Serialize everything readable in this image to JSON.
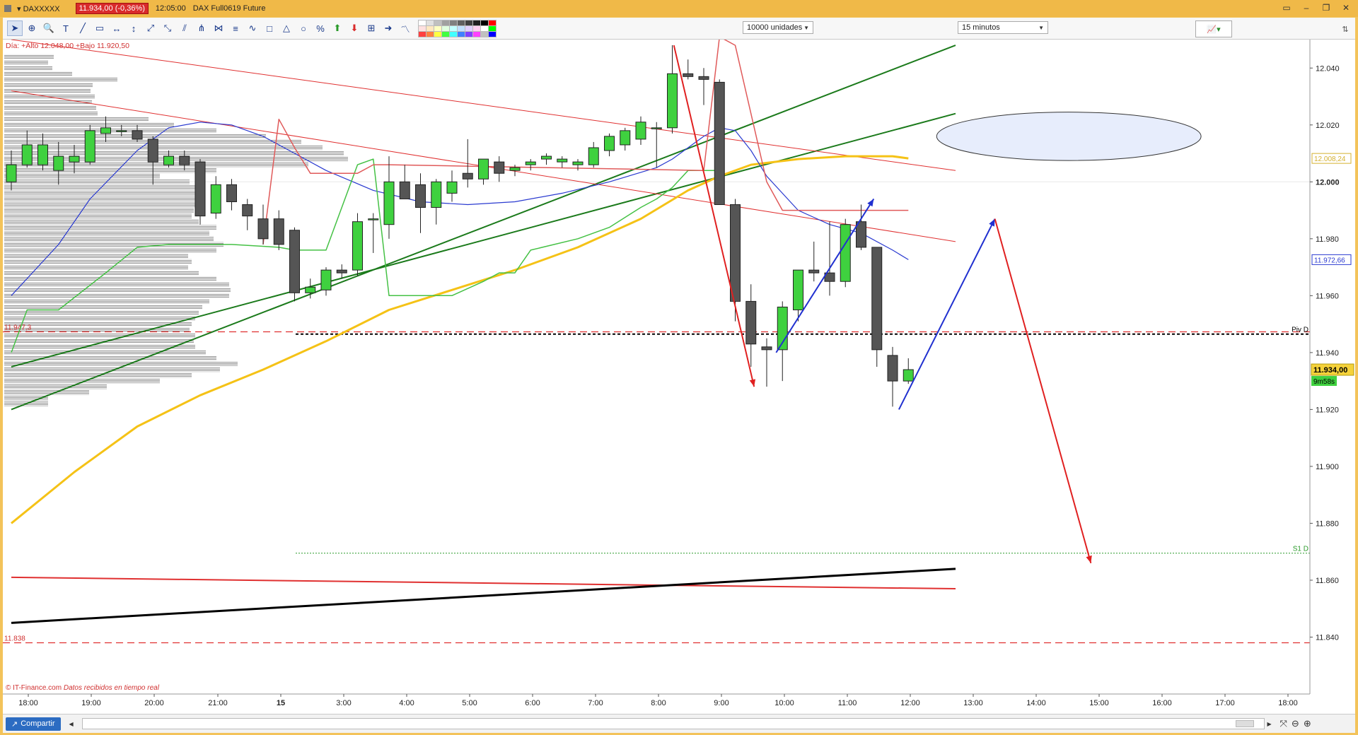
{
  "window": {
    "symbol": "DAXXXXX",
    "price_chip": "11.934,00 (-0,36%)",
    "time": "12:05:00",
    "description": "DAX Full0619 Future"
  },
  "toolbar": {
    "units_label": "10000 unidades",
    "timeframe_label": "15 minutos",
    "colors": [
      "#ffffff",
      "#e0e0e0",
      "#c0c0c0",
      "#a0a0a0",
      "#808080",
      "#606060",
      "#404040",
      "#202020",
      "#000000",
      "#ff0000",
      "#ffe0e0",
      "#ffe8c0",
      "#ffffc0",
      "#e0ffe0",
      "#c0ffff",
      "#c0e0ff",
      "#e0d0ff",
      "#ffd0f0",
      "#ffffff",
      "#00ff00",
      "#ff4040",
      "#ff8040",
      "#ffff40",
      "#40ff40",
      "#40ffff",
      "#4080ff",
      "#8040ff",
      "#ff40ff",
      "#c0c0c0",
      "#0000ff"
    ]
  },
  "chart_data": {
    "type": "candlestick",
    "header_text": "Día: +Alto 12.048,00 +Bajo 11.920,50",
    "attribution": "© IT-Finance.com",
    "attribution_note": "Datos recibidos en tiempo real",
    "y_range": [
      11820,
      12050
    ],
    "y_ticks": [
      "12.040",
      "12.020",
      "12.000",
      "11.980",
      "11.960",
      "11.940",
      "11.920",
      "11.900",
      "11.880",
      "11.860",
      "11.840"
    ],
    "current_price": "11.934,00",
    "countdown": "9m58s",
    "right_labels": [
      {
        "text": "12.008,24",
        "value": 12008.24,
        "color": "#d4b030"
      },
      {
        "text": "11.972,66",
        "value": 11972.66,
        "color": "#2a3ad0"
      }
    ],
    "levels": [
      {
        "name": "Piv D",
        "value": 11946.5,
        "color": "#000000"
      },
      {
        "name": "S1 D",
        "value": 11869.5,
        "color": "#2a9a2a"
      }
    ],
    "left_levels": [
      {
        "text": "11.947,3",
        "value": 11947.3
      },
      {
        "text": "11.838",
        "value": 11838
      }
    ],
    "x_labels": [
      "18:00",
      "19:00",
      "20:00",
      "21:00",
      "15",
      "3:00",
      "4:00",
      "5:00",
      "6:00",
      "7:00",
      "8:00",
      "9:00",
      "10:00",
      "11:00",
      "12:00",
      "13:00",
      "14:00",
      "15:00",
      "16:00",
      "17:00",
      "18:00"
    ],
    "x_label_bold": "15",
    "candles": [
      {
        "o": 12000,
        "h": 12011,
        "l": 11997,
        "c": 12006
      },
      {
        "o": 12006,
        "h": 12018,
        "l": 12005,
        "c": 12013
      },
      {
        "o": 12006,
        "h": 12017,
        "l": 12004,
        "c": 12013
      },
      {
        "o": 12004,
        "h": 12014,
        "l": 11999,
        "c": 12009
      },
      {
        "o": 12007,
        "h": 12013,
        "l": 12003,
        "c": 12009
      },
      {
        "o": 12007,
        "h": 12020,
        "l": 12006,
        "c": 12018
      },
      {
        "o": 12017,
        "h": 12023,
        "l": 12014,
        "c": 12019
      },
      {
        "o": 12018,
        "h": 12020,
        "l": 12016,
        "c": 12018
      },
      {
        "o": 12018,
        "h": 12020,
        "l": 12014,
        "c": 12015
      },
      {
        "o": 12015,
        "h": 12016,
        "l": 11999,
        "c": 12007
      },
      {
        "o": 12006,
        "h": 12011,
        "l": 12005,
        "c": 12009
      },
      {
        "o": 12009,
        "h": 12011,
        "l": 12004,
        "c": 12006
      },
      {
        "o": 12007,
        "h": 12008,
        "l": 11985,
        "c": 11988
      },
      {
        "o": 11989,
        "h": 12002,
        "l": 11987,
        "c": 11999
      },
      {
        "o": 11999,
        "h": 12001,
        "l": 11990,
        "c": 11993
      },
      {
        "o": 11992,
        "h": 11994,
        "l": 11983,
        "c": 11988
      },
      {
        "o": 11987,
        "h": 11992,
        "l": 11978,
        "c": 11980
      },
      {
        "o": 11987,
        "h": 11990,
        "l": 11976,
        "c": 11978
      },
      {
        "o": 11983,
        "h": 11984,
        "l": 11958,
        "c": 11961
      },
      {
        "o": 11961,
        "h": 11966,
        "l": 11959,
        "c": 11963
      },
      {
        "o": 11962,
        "h": 11970,
        "l": 11960,
        "c": 11969
      },
      {
        "o": 11969,
        "h": 11971,
        "l": 11966,
        "c": 11968
      },
      {
        "o": 11969,
        "h": 11989,
        "l": 11967,
        "c": 11986
      },
      {
        "o": 11987,
        "h": 11989,
        "l": 11975,
        "c": 11987
      },
      {
        "o": 11985,
        "h": 12009,
        "l": 11980,
        "c": 12000
      },
      {
        "o": 12000,
        "h": 12006,
        "l": 11995,
        "c": 11994
      },
      {
        "o": 11999,
        "h": 12003,
        "l": 11982,
        "c": 11991
      },
      {
        "o": 11991,
        "h": 12001,
        "l": 11985,
        "c": 12000
      },
      {
        "o": 11996,
        "h": 12004,
        "l": 11993,
        "c": 12000
      },
      {
        "o": 12003,
        "h": 12015,
        "l": 11998,
        "c": 12001
      },
      {
        "o": 12001,
        "h": 12007,
        "l": 11999,
        "c": 12008
      },
      {
        "o": 12007,
        "h": 12009,
        "l": 12000,
        "c": 12003
      },
      {
        "o": 12004,
        "h": 12006,
        "l": 12002,
        "c": 12005
      },
      {
        "o": 12006,
        "h": 12008,
        "l": 12004,
        "c": 12007
      },
      {
        "o": 12008,
        "h": 12010,
        "l": 12006,
        "c": 12009
      },
      {
        "o": 12007,
        "h": 12009,
        "l": 12005,
        "c": 12008
      },
      {
        "o": 12006,
        "h": 12008,
        "l": 12004,
        "c": 12007
      },
      {
        "o": 12006,
        "h": 12014,
        "l": 12005,
        "c": 12012
      },
      {
        "o": 12011,
        "h": 12017,
        "l": 12009,
        "c": 12016
      },
      {
        "o": 12013,
        "h": 12019,
        "l": 12011,
        "c": 12018
      },
      {
        "o": 12015,
        "h": 12023,
        "l": 12013,
        "c": 12021
      },
      {
        "o": 12019,
        "h": 12021,
        "l": 12005,
        "c": 12019
      },
      {
        "o": 12019,
        "h": 12048,
        "l": 12017,
        "c": 12038
      },
      {
        "o": 12038,
        "h": 12043,
        "l": 12036,
        "c": 12037
      },
      {
        "o": 12037,
        "h": 12040,
        "l": 12027,
        "c": 12036
      },
      {
        "o": 12035,
        "h": 12036,
        "l": 11992,
        "c": 11992
      },
      {
        "o": 11992,
        "h": 11994,
        "l": 11951,
        "c": 11958
      },
      {
        "o": 11958,
        "h": 11964,
        "l": 11935,
        "c": 11943
      },
      {
        "o": 11942,
        "h": 11945,
        "l": 11928,
        "c": 11941
      },
      {
        "o": 11941,
        "h": 11958,
        "l": 11930,
        "c": 11956
      },
      {
        "o": 11955,
        "h": 11969,
        "l": 11951,
        "c": 11969
      },
      {
        "o": 11969,
        "h": 11979,
        "l": 11965,
        "c": 11968
      },
      {
        "o": 11968,
        "h": 11986,
        "l": 11960,
        "c": 11965
      },
      {
        "o": 11965,
        "h": 11987,
        "l": 11963,
        "c": 11985
      },
      {
        "o": 11986,
        "h": 11992,
        "l": 11976,
        "c": 11977
      },
      {
        "o": 11977,
        "h": 11977,
        "l": 11935,
        "c": 11941
      },
      {
        "o": 11939,
        "h": 11942,
        "l": 11921,
        "c": 11930
      },
      {
        "o": 11930,
        "h": 11938,
        "l": 11929,
        "c": 11934
      }
    ],
    "volume_profile": [
      {
        "price": 12044,
        "len": 70
      },
      {
        "price": 12042,
        "len": 62
      },
      {
        "price": 12040,
        "len": 68
      },
      {
        "price": 12038,
        "len": 96
      },
      {
        "price": 12036,
        "len": 160
      },
      {
        "price": 12034,
        "len": 125
      },
      {
        "price": 12032,
        "len": 122
      },
      {
        "price": 12030,
        "len": 128
      },
      {
        "price": 12028,
        "len": 124
      },
      {
        "price": 12026,
        "len": 130
      },
      {
        "price": 12024,
        "len": 132
      },
      {
        "price": 12022,
        "len": 204
      },
      {
        "price": 12020,
        "len": 240
      },
      {
        "price": 12018,
        "len": 300
      },
      {
        "price": 12016,
        "len": 370
      },
      {
        "price": 12014,
        "len": 420
      },
      {
        "price": 12012,
        "len": 450
      },
      {
        "price": 12010,
        "len": 480
      },
      {
        "price": 12008,
        "len": 486
      },
      {
        "price": 12006,
        "len": 430
      },
      {
        "price": 12004,
        "len": 300
      },
      {
        "price": 12002,
        "len": 220
      },
      {
        "price": 12000,
        "len": 262
      },
      {
        "price": 11998,
        "len": 270
      },
      {
        "price": 11996,
        "len": 275
      },
      {
        "price": 11994,
        "len": 280
      },
      {
        "price": 11992,
        "len": 270
      },
      {
        "price": 11990,
        "len": 268
      },
      {
        "price": 11988,
        "len": 265
      },
      {
        "price": 11986,
        "len": 275
      },
      {
        "price": 11984,
        "len": 300
      },
      {
        "price": 11982,
        "len": 290
      },
      {
        "price": 11980,
        "len": 296
      },
      {
        "price": 11978,
        "len": 310
      },
      {
        "price": 11976,
        "len": 300
      },
      {
        "price": 11974,
        "len": 260
      },
      {
        "price": 11972,
        "len": 265
      },
      {
        "price": 11970,
        "len": 260
      },
      {
        "price": 11968,
        "len": 275
      },
      {
        "price": 11966,
        "len": 300
      },
      {
        "price": 11964,
        "len": 318
      },
      {
        "price": 11962,
        "len": 320
      },
      {
        "price": 11960,
        "len": 318
      },
      {
        "price": 11958,
        "len": 290
      },
      {
        "price": 11956,
        "len": 280
      },
      {
        "price": 11954,
        "len": 275
      },
      {
        "price": 11952,
        "len": 270
      },
      {
        "price": 11950,
        "len": 265
      },
      {
        "price": 11948,
        "len": 262
      },
      {
        "price": 11946,
        "len": 270
      },
      {
        "price": 11944,
        "len": 268
      },
      {
        "price": 11942,
        "len": 270
      },
      {
        "price": 11940,
        "len": 285
      },
      {
        "price": 11938,
        "len": 300
      },
      {
        "price": 11936,
        "len": 330
      },
      {
        "price": 11934,
        "len": 305
      },
      {
        "price": 11932,
        "len": 265
      },
      {
        "price": 11930,
        "len": 220
      },
      {
        "price": 11928,
        "len": 145
      },
      {
        "price": 11926,
        "len": 120
      },
      {
        "price": 11924,
        "len": 62
      },
      {
        "price": 11922,
        "len": 62
      }
    ],
    "sma_blue": [
      [
        0,
        11960
      ],
      [
        3,
        11978
      ],
      [
        5,
        11994
      ],
      [
        8,
        12011
      ],
      [
        10,
        12019
      ],
      [
        12,
        12021
      ],
      [
        14,
        12020
      ],
      [
        16,
        12016
      ],
      [
        18,
        12010
      ],
      [
        20,
        12004
      ],
      [
        23,
        11997
      ],
      [
        26,
        11993
      ],
      [
        29,
        11992
      ],
      [
        32,
        11993
      ],
      [
        35,
        11996
      ],
      [
        38,
        12000
      ],
      [
        41,
        12005
      ],
      [
        42,
        12008
      ],
      [
        43,
        12012
      ],
      [
        44,
        12016
      ],
      [
        45,
        12019
      ],
      [
        46,
        12018
      ],
      [
        47,
        12011
      ],
      [
        48,
        12002
      ],
      [
        50,
        11990
      ],
      [
        52,
        11985
      ],
      [
        54,
        11982
      ],
      [
        56,
        11976
      ],
      [
        57,
        11972.66
      ]
    ],
    "sma_yellow": [
      [
        0,
        11880
      ],
      [
        4,
        11898
      ],
      [
        8,
        11914
      ],
      [
        12,
        11925
      ],
      [
        16,
        11934
      ],
      [
        20,
        11944
      ],
      [
        24,
        11955
      ],
      [
        28,
        11962
      ],
      [
        32,
        11969
      ],
      [
        36,
        11977
      ],
      [
        40,
        11987
      ],
      [
        43,
        11997
      ],
      [
        45,
        12002
      ],
      [
        47,
        12006
      ],
      [
        50,
        12008
      ],
      [
        53,
        12009
      ],
      [
        56,
        12009
      ],
      [
        57,
        12008.24
      ]
    ],
    "trail_green": [
      [
        0,
        11940
      ],
      [
        1,
        11955
      ],
      [
        3,
        11955
      ],
      [
        6,
        11968
      ],
      [
        8,
        11977
      ],
      [
        10,
        11978
      ],
      [
        14,
        11978
      ],
      [
        17,
        11977
      ],
      [
        18,
        11976
      ],
      [
        20,
        11976
      ],
      [
        22,
        12006
      ],
      [
        23,
        12008
      ],
      [
        24,
        11960
      ],
      [
        27,
        11960
      ],
      [
        28,
        11960
      ],
      [
        30,
        11965
      ],
      [
        31,
        11968
      ],
      [
        32,
        11968
      ],
      [
        33,
        11976
      ],
      [
        36,
        11980
      ],
      [
        38,
        11984
      ],
      [
        40,
        11991
      ],
      [
        41,
        11994
      ],
      [
        42,
        11998
      ],
      [
        43,
        12004
      ],
      [
        44,
        12004
      ],
      [
        45,
        12004
      ]
    ],
    "trail_red": [
      [
        16,
        11978
      ],
      [
        17,
        12022
      ],
      [
        18,
        12012
      ],
      [
        19,
        12003
      ],
      [
        20,
        12003
      ],
      [
        21,
        12003
      ],
      [
        22,
        12003
      ],
      [
        23,
        12006
      ],
      [
        24,
        12006
      ],
      [
        44,
        12004
      ],
      [
        45,
        12051
      ],
      [
        46,
        12048
      ],
      [
        48,
        12000
      ],
      [
        49,
        11990
      ],
      [
        57,
        11990
      ]
    ],
    "trendlines": [
      {
        "color": "#1b7a1b",
        "width": 2,
        "from": [
          0,
          11920
        ],
        "to": [
          60,
          12048
        ]
      },
      {
        "color": "#1b7a1b",
        "width": 2,
        "from": [
          0,
          11935
        ],
        "to": [
          60,
          12024
        ]
      },
      {
        "color": "#e03030",
        "width": 1,
        "from": [
          0,
          12050
        ],
        "to": [
          60,
          12004
        ]
      },
      {
        "color": "#e03030",
        "width": 1,
        "from": [
          0,
          12032
        ],
        "to": [
          60,
          11979
        ]
      },
      {
        "color": "#e03030",
        "width": 2,
        "from": [
          0,
          11861
        ],
        "to": [
          60,
          11857
        ]
      },
      {
        "color": "#000000",
        "width": 3,
        "from": [
          0,
          11845
        ],
        "to": [
          60,
          11864
        ]
      }
    ],
    "arrows": [
      {
        "color": "#e02020",
        "from": [
          42.1,
          12048
        ],
        "to": [
          47.2,
          11928
        ]
      },
      {
        "color": "#2030d0",
        "from": [
          48.6,
          11940
        ],
        "to": [
          54.8,
          11994
        ]
      },
      {
        "color": "#2030d0",
        "from": [
          56.4,
          11920
        ],
        "to": [
          62.5,
          11987
        ]
      },
      {
        "color": "#e02020",
        "from": [
          62.5,
          11987
        ],
        "to": [
          68.6,
          11866
        ]
      }
    ],
    "ellipse": {
      "cx": 67.2,
      "cy": 12016,
      "rx": 8.4,
      "ry": 8.5
    }
  }
}
